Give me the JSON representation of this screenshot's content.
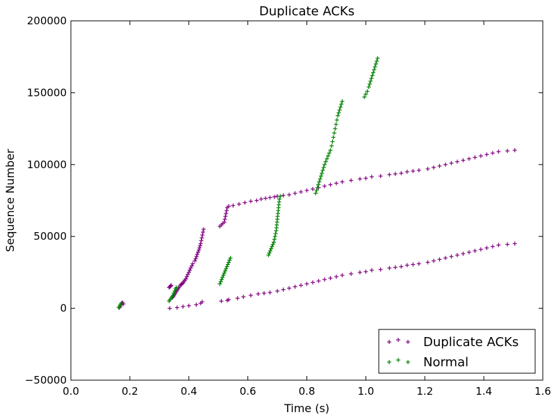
{
  "chart_data": {
    "type": "scatter",
    "title": "Duplicate ACKs",
    "xlabel": "Time (s)",
    "ylabel": "Sequence Number",
    "xlim": [
      0.0,
      1.6
    ],
    "ylim": [
      -50000,
      200000
    ],
    "xticks": [
      "0.0",
      "0.2",
      "0.4",
      "0.6",
      "0.8",
      "1.0",
      "1.2",
      "1.4",
      "1.6"
    ],
    "yticks": [
      "−50000",
      "0",
      "50000",
      "100000",
      "150000",
      "200000"
    ],
    "grid": false,
    "legend_position": "bottom-right",
    "marker": "+",
    "series": [
      {
        "name": "Duplicate ACKs",
        "color": "#800080",
        "points": [
          [
            0.165,
            500
          ],
          [
            0.168,
            1500
          ],
          [
            0.17,
            2500
          ],
          [
            0.172,
            3500
          ],
          [
            0.175,
            4000
          ],
          [
            0.178,
            3000
          ],
          [
            0.333,
            14500
          ],
          [
            0.336,
            15000
          ],
          [
            0.338,
            15500
          ],
          [
            0.34,
            16000
          ],
          [
            0.345,
            7500
          ],
          [
            0.348,
            8500
          ],
          [
            0.351,
            9500
          ],
          [
            0.354,
            10500
          ],
          [
            0.357,
            11500
          ],
          [
            0.36,
            12500
          ],
          [
            0.363,
            13500
          ],
          [
            0.366,
            14500
          ],
          [
            0.37,
            15500
          ],
          [
            0.373,
            16500
          ],
          [
            0.376,
            17000
          ],
          [
            0.38,
            17500
          ],
          [
            0.383,
            18500
          ],
          [
            0.386,
            19500
          ],
          [
            0.39,
            20500
          ],
          [
            0.393,
            22000
          ],
          [
            0.396,
            23500
          ],
          [
            0.4,
            25000
          ],
          [
            0.403,
            26500
          ],
          [
            0.406,
            28000
          ],
          [
            0.41,
            29500
          ],
          [
            0.413,
            31000
          ],
          [
            0.42,
            33000
          ],
          [
            0.423,
            34500
          ],
          [
            0.426,
            36000
          ],
          [
            0.428,
            37500
          ],
          [
            0.431,
            39000
          ],
          [
            0.434,
            40500
          ],
          [
            0.436,
            42000
          ],
          [
            0.438,
            43500
          ],
          [
            0.44,
            45000
          ],
          [
            0.442,
            47000
          ],
          [
            0.444,
            49000
          ],
          [
            0.446,
            51000
          ],
          [
            0.448,
            53000
          ],
          [
            0.45,
            55000
          ],
          [
            0.505,
            57000
          ],
          [
            0.51,
            58000
          ],
          [
            0.515,
            59000
          ],
          [
            0.52,
            60000
          ],
          [
            0.522,
            62000
          ],
          [
            0.524,
            64000
          ],
          [
            0.526,
            66000
          ],
          [
            0.528,
            68000
          ],
          [
            0.53,
            70000
          ],
          [
            0.535,
            71000
          ],
          [
            0.55,
            71500
          ],
          [
            0.57,
            72500
          ],
          [
            0.59,
            73500
          ],
          [
            0.61,
            74500
          ],
          [
            0.63,
            75000
          ],
          [
            0.645,
            76000
          ],
          [
            0.66,
            76500
          ],
          [
            0.675,
            77000
          ],
          [
            0.69,
            77500
          ],
          [
            0.7,
            78000
          ],
          [
            0.72,
            78500
          ],
          [
            0.74,
            79000
          ],
          [
            0.76,
            80000
          ],
          [
            0.78,
            81000
          ],
          [
            0.8,
            82000
          ],
          [
            0.82,
            83000
          ],
          [
            0.84,
            84000
          ],
          [
            0.86,
            85000
          ],
          [
            0.88,
            86000
          ],
          [
            0.9,
            87000
          ],
          [
            0.92,
            88000
          ],
          [
            0.95,
            89000
          ],
          [
            0.98,
            90000
          ],
          [
            1.0,
            90500
          ],
          [
            1.02,
            91500
          ],
          [
            1.05,
            92000
          ],
          [
            1.08,
            93000
          ],
          [
            1.1,
            93500
          ],
          [
            1.12,
            94000
          ],
          [
            1.14,
            95000
          ],
          [
            1.16,
            95500
          ],
          [
            1.18,
            96000
          ],
          [
            1.21,
            97000
          ],
          [
            1.23,
            98000
          ],
          [
            1.25,
            99000
          ],
          [
            1.27,
            100000
          ],
          [
            1.29,
            101000
          ],
          [
            1.31,
            102000
          ],
          [
            1.33,
            103000
          ],
          [
            1.35,
            104000
          ],
          [
            1.37,
            105000
          ],
          [
            1.39,
            106000
          ],
          [
            1.41,
            107000
          ],
          [
            1.43,
            108000
          ],
          [
            1.45,
            109000
          ],
          [
            1.48,
            109500
          ],
          [
            1.505,
            110000
          ],
          [
            0.335,
            0
          ],
          [
            0.36,
            500
          ],
          [
            0.38,
            1200
          ],
          [
            0.4,
            1800
          ],
          [
            0.425,
            2500
          ],
          [
            0.44,
            3500
          ],
          [
            0.445,
            4500
          ],
          [
            0.51,
            5000
          ],
          [
            0.53,
            5500
          ],
          [
            0.535,
            6000
          ],
          [
            0.565,
            7000
          ],
          [
            0.585,
            8000
          ],
          [
            0.61,
            9000
          ],
          [
            0.635,
            10000
          ],
          [
            0.655,
            10500
          ],
          [
            0.675,
            11000
          ],
          [
            0.7,
            12000
          ],
          [
            0.72,
            13000
          ],
          [
            0.74,
            14000
          ],
          [
            0.76,
            15000
          ],
          [
            0.78,
            16000
          ],
          [
            0.8,
            17000
          ],
          [
            0.82,
            18000
          ],
          [
            0.84,
            19000
          ],
          [
            0.86,
            20000
          ],
          [
            0.88,
            21000
          ],
          [
            0.9,
            22000
          ],
          [
            0.92,
            23000
          ],
          [
            0.95,
            24000
          ],
          [
            0.98,
            25000
          ],
          [
            1.0,
            25500
          ],
          [
            1.02,
            26500
          ],
          [
            1.05,
            27000
          ],
          [
            1.08,
            28000
          ],
          [
            1.1,
            28500
          ],
          [
            1.12,
            29000
          ],
          [
            1.14,
            30000
          ],
          [
            1.16,
            30500
          ],
          [
            1.18,
            31000
          ],
          [
            1.21,
            32000
          ],
          [
            1.23,
            33000
          ],
          [
            1.25,
            34000
          ],
          [
            1.27,
            35000
          ],
          [
            1.29,
            36000
          ],
          [
            1.31,
            37000
          ],
          [
            1.33,
            38000
          ],
          [
            1.35,
            39000
          ],
          [
            1.37,
            40000
          ],
          [
            1.39,
            41000
          ],
          [
            1.41,
            42000
          ],
          [
            1.43,
            43000
          ],
          [
            1.45,
            44000
          ],
          [
            1.48,
            44500
          ],
          [
            1.505,
            45000
          ]
        ]
      },
      {
        "name": "Normal",
        "color": "#008000",
        "points": [
          [
            0.162,
            500
          ],
          [
            0.165,
            1500
          ],
          [
            0.168,
            2500
          ],
          [
            0.171,
            3500
          ],
          [
            0.333,
            5000
          ],
          [
            0.336,
            6000
          ],
          [
            0.34,
            7000
          ],
          [
            0.343,
            8000
          ],
          [
            0.346,
            9000
          ],
          [
            0.349,
            10500
          ],
          [
            0.352,
            12000
          ],
          [
            0.355,
            13500
          ],
          [
            0.358,
            14500
          ],
          [
            0.505,
            17000
          ],
          [
            0.508,
            18500
          ],
          [
            0.511,
            20000
          ],
          [
            0.514,
            21500
          ],
          [
            0.517,
            23000
          ],
          [
            0.52,
            24500
          ],
          [
            0.523,
            26000
          ],
          [
            0.526,
            27500
          ],
          [
            0.529,
            29000
          ],
          [
            0.532,
            30500
          ],
          [
            0.535,
            32000
          ],
          [
            0.538,
            33500
          ],
          [
            0.541,
            35000
          ],
          [
            0.67,
            37000
          ],
          [
            0.673,
            38500
          ],
          [
            0.676,
            40000
          ],
          [
            0.679,
            41500
          ],
          [
            0.682,
            43000
          ],
          [
            0.685,
            44500
          ],
          [
            0.688,
            46000
          ],
          [
            0.69,
            48000
          ],
          [
            0.692,
            50000
          ],
          [
            0.694,
            52000
          ],
          [
            0.696,
            54000
          ],
          [
            0.697,
            56000
          ],
          [
            0.698,
            58000
          ],
          [
            0.699,
            60000
          ],
          [
            0.7,
            62000
          ],
          [
            0.701,
            64000
          ],
          [
            0.702,
            66000
          ],
          [
            0.703,
            68000
          ],
          [
            0.704,
            70000
          ],
          [
            0.705,
            72000
          ],
          [
            0.706,
            74000
          ],
          [
            0.707,
            76000
          ],
          [
            0.71,
            78000
          ],
          [
            0.83,
            80000
          ],
          [
            0.833,
            82000
          ],
          [
            0.836,
            84000
          ],
          [
            0.839,
            86000
          ],
          [
            0.842,
            88000
          ],
          [
            0.845,
            90000
          ],
          [
            0.848,
            92000
          ],
          [
            0.851,
            94000
          ],
          [
            0.854,
            96000
          ],
          [
            0.857,
            98000
          ],
          [
            0.86,
            100000
          ],
          [
            0.864,
            102000
          ],
          [
            0.868,
            104000
          ],
          [
            0.872,
            106000
          ],
          [
            0.876,
            108000
          ],
          [
            0.88,
            110000
          ],
          [
            0.884,
            113000
          ],
          [
            0.887,
            116000
          ],
          [
            0.89,
            119000
          ],
          [
            0.893,
            122000
          ],
          [
            0.896,
            125000
          ],
          [
            0.899,
            128000
          ],
          [
            0.902,
            131000
          ],
          [
            0.905,
            134000
          ],
          [
            0.908,
            136000
          ],
          [
            0.911,
            138000
          ],
          [
            0.914,
            140000
          ],
          [
            0.917,
            142000
          ],
          [
            0.92,
            144000
          ],
          [
            0.995,
            147000
          ],
          [
            1.0,
            149000
          ],
          [
            1.005,
            151000
          ],
          [
            1.01,
            154000
          ],
          [
            1.013,
            156000
          ],
          [
            1.016,
            158000
          ],
          [
            1.019,
            160000
          ],
          [
            1.022,
            162000
          ],
          [
            1.025,
            164000
          ],
          [
            1.028,
            166000
          ],
          [
            1.031,
            168000
          ],
          [
            1.034,
            170000
          ],
          [
            1.037,
            172000
          ],
          [
            1.04,
            174000
          ]
        ]
      }
    ]
  }
}
